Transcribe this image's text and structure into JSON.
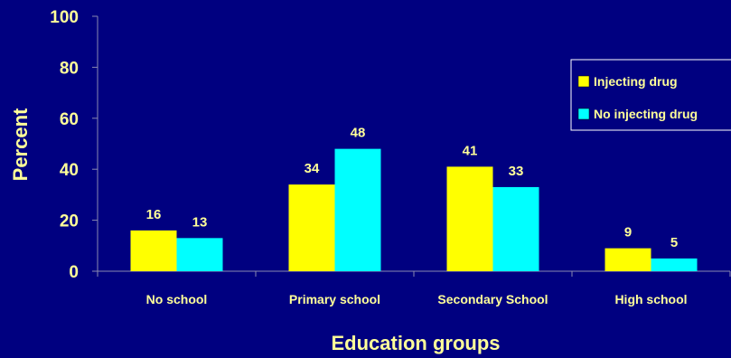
{
  "chart_data": {
    "type": "bar",
    "categories": [
      "No school",
      "Primary school",
      "Secondary School",
      "High school"
    ],
    "series": [
      {
        "name": "Injecting drug",
        "values": [
          16,
          34,
          41,
          9
        ],
        "color": "#FFFF00"
      },
      {
        "name": "No injecting drug",
        "values": [
          13,
          48,
          33,
          5
        ],
        "color": "#00FFFF"
      }
    ],
    "xlabel": "Education groups",
    "ylabel": "Percent",
    "ylim": [
      0,
      100
    ],
    "yticks": [
      0,
      20,
      40,
      60,
      80,
      100
    ],
    "grid": false,
    "legend_position": "right",
    "colors": {
      "background": "#000080",
      "text": "#FFFF99",
      "axis": "#8A8AB0"
    }
  }
}
